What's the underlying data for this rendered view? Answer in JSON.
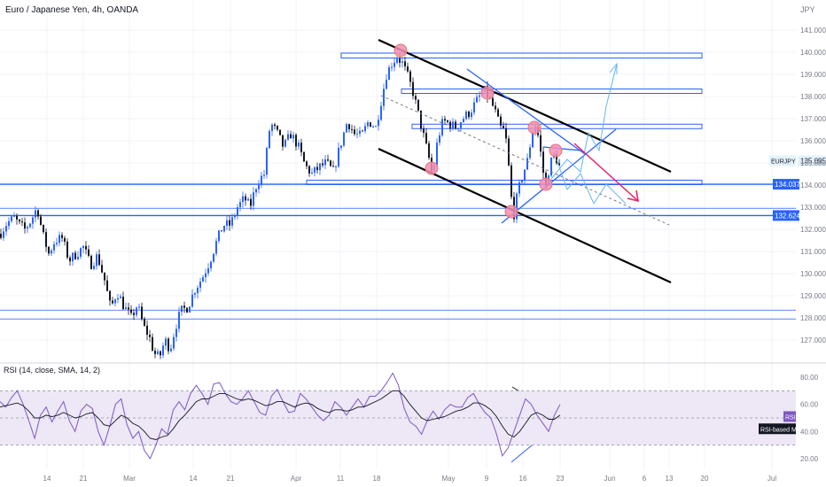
{
  "header": {
    "title": "Euro / Japanese Yen, 4h, OANDA",
    "currency": "JPY"
  },
  "colors": {
    "up": "#2962ff",
    "down": "#131722",
    "hline": "#2962ff",
    "channel": "#000000",
    "circle": "#f48fb1",
    "projection": "#64b5f6",
    "red_arrow": "#e91e63",
    "rsi_line": "#7e57c2",
    "rsi_ma": "#131722",
    "rsi_band": "#ede7f6",
    "grid": "#f0f3fa"
  },
  "chart_data": [
    {
      "type": "candlestick",
      "title": "Euro / Japanese Yen, 4h, OANDA",
      "y_unit": "JPY",
      "ylim": [
        126.2,
        141.5
      ],
      "y_ticks": [
        127,
        128,
        129,
        130,
        131,
        132,
        133,
        134,
        135,
        136,
        137,
        138,
        139,
        140,
        141
      ],
      "y_tick_labels": [
        "127.000",
        "128.000",
        "129.000",
        "130.000",
        "131.000",
        "132.000",
        "133.000",
        "134.000",
        "135.000",
        "136.000",
        "137.000",
        "138.000",
        "139.000",
        "140.000",
        "141.000"
      ],
      "x_labels": [
        "14",
        "21",
        "Mar",
        "14",
        "21",
        "Apr",
        "11",
        "18",
        "May",
        "9",
        "16",
        "23",
        "Jun",
        "6",
        "13",
        "20",
        "Jul"
      ],
      "grid": true,
      "price_path": [
        [
          0,
          131.8
        ],
        [
          8,
          132.3
        ],
        [
          16,
          132.5
        ],
        [
          22,
          132.2
        ],
        [
          28,
          132.0
        ],
        [
          35,
          132.4
        ],
        [
          42,
          133.0
        ],
        [
          48,
          131.8
        ],
        [
          55,
          130.9
        ],
        [
          62,
          131.5
        ],
        [
          70,
          131.6
        ],
        [
          78,
          130.6
        ],
        [
          86,
          130.9
        ],
        [
          94,
          131.2
        ],
        [
          102,
          130.4
        ],
        [
          110,
          130.8
        ],
        [
          118,
          129.7
        ],
        [
          125,
          128.4
        ],
        [
          132,
          129.2
        ],
        [
          140,
          128.5
        ],
        [
          148,
          128.0
        ],
        [
          155,
          128.6
        ],
        [
          162,
          127.6
        ],
        [
          168,
          127.2
        ],
        [
          174,
          126.4
        ],
        [
          180,
          126.2
        ],
        [
          186,
          127.0
        ],
        [
          192,
          126.6
        ],
        [
          198,
          127.6
        ],
        [
          204,
          128.3
        ],
        [
          212,
          128.5
        ],
        [
          220,
          129.3
        ],
        [
          228,
          129.8
        ],
        [
          236,
          130.5
        ],
        [
          244,
          131.4
        ],
        [
          252,
          132.2
        ],
        [
          260,
          132.2
        ],
        [
          268,
          133.0
        ],
        [
          276,
          133.4
        ],
        [
          282,
          133.0
        ],
        [
          290,
          134.1
        ],
        [
          298,
          134.5
        ],
        [
          305,
          136.8
        ],
        [
          312,
          136.4
        ],
        [
          320,
          135.7
        ],
        [
          328,
          136.3
        ],
        [
          336,
          135.8
        ],
        [
          344,
          134.9
        ],
        [
          352,
          134.5
        ],
        [
          360,
          134.8
        ],
        [
          368,
          135.0
        ],
        [
          376,
          134.6
        ],
        [
          384,
          135.8
        ],
        [
          392,
          136.9
        ],
        [
          400,
          136.3
        ],
        [
          408,
          136.2
        ],
        [
          416,
          136.9
        ],
        [
          424,
          136.6
        ],
        [
          430,
          137.8
        ],
        [
          436,
          139.0
        ],
        [
          442,
          139.5
        ],
        [
          448,
          139.8
        ],
        [
          454,
          139.5
        ],
        [
          460,
          138.9
        ],
        [
          466,
          138.2
        ],
        [
          472,
          137.2
        ],
        [
          478,
          136.2
        ],
        [
          484,
          135.2
        ],
        [
          488,
          134.4
        ],
        [
          494,
          136.1
        ],
        [
          500,
          136.9
        ],
        [
          506,
          136.8
        ],
        [
          514,
          136.6
        ],
        [
          522,
          137.0
        ],
        [
          530,
          137.3
        ],
        [
          538,
          137.8
        ],
        [
          546,
          138.3
        ],
        [
          552,
          137.9
        ],
        [
          558,
          137.4
        ],
        [
          564,
          136.6
        ],
        [
          570,
          136.4
        ],
        [
          574,
          134.8
        ],
        [
          577,
          133.4
        ],
        [
          580,
          132.7
        ],
        [
          584,
          133.6
        ],
        [
          590,
          134.5
        ],
        [
          596,
          135.2
        ],
        [
          600,
          136.4
        ],
        [
          604,
          136.7
        ],
        [
          608,
          136.1
        ],
        [
          612,
          134.8
        ],
        [
          616,
          133.9
        ],
        [
          620,
          134.9
        ],
        [
          626,
          135.4
        ],
        [
          632,
          134.7
        ]
      ],
      "hlines": [
        {
          "y": 134.037,
          "label": "134.037"
        },
        {
          "y": 132.624,
          "label": "132.624"
        }
      ],
      "thin_hlines": [
        132.95,
        128.35,
        127.95
      ],
      "zones": [
        {
          "x1": 385,
          "x2": 792,
          "y1": 139.74,
          "y2": 139.96
        },
        {
          "x1": 453,
          "x2": 792,
          "y1": 138.14,
          "y2": 138.34
        },
        {
          "x1": 465,
          "x2": 792,
          "y1": 136.55,
          "y2": 136.75
        },
        {
          "x1": 346,
          "x2": 792,
          "y1": 134.02,
          "y2": 134.22
        }
      ],
      "current_price": {
        "symbol": "EURJPY",
        "value": "135.095",
        "y": 135.095
      }
    },
    {
      "type": "line",
      "title": "RSI (14, close, SMA, 14, 2)",
      "ylim": [
        10,
        90
      ],
      "y_ticks": [
        20,
        40,
        60,
        80
      ],
      "y_tick_labels": [
        "20.00",
        "40.00",
        "60.00",
        "80.00"
      ],
      "band": [
        30,
        70
      ],
      "midline": 50,
      "series": [
        {
          "name": "RSI",
          "values": [
            62,
            58,
            65,
            70,
            60,
            48,
            35,
            52,
            58,
            47,
            55,
            62,
            48,
            40,
            55,
            60,
            57,
            40,
            30,
            44,
            60,
            64,
            45,
            35,
            40,
            26,
            20,
            30,
            42,
            38,
            56,
            62,
            56,
            68,
            74,
            68,
            60,
            75,
            76,
            68,
            62,
            60,
            64,
            70,
            62,
            54,
            52,
            66,
            71,
            62,
            54,
            55,
            68,
            64,
            58,
            52,
            48,
            52,
            62,
            58,
            52,
            58,
            64,
            58,
            66,
            66,
            70,
            76,
            83,
            74,
            57,
            47,
            44,
            38,
            48,
            55,
            49,
            56,
            60,
            58,
            58,
            65,
            68,
            60,
            54,
            50,
            38,
            22,
            28,
            40,
            52,
            64,
            60,
            52,
            46,
            40,
            52,
            60
          ]
        },
        {
          "name": "RSI-based MA",
          "values": [
            58,
            59,
            60,
            61,
            59,
            55,
            50,
            50,
            52,
            51,
            52,
            54,
            52,
            50,
            51,
            53,
            54,
            50,
            45,
            44,
            48,
            52,
            50,
            46,
            44,
            40,
            35,
            34,
            36,
            37,
            42,
            48,
            52,
            57,
            62,
            64,
            64,
            66,
            68,
            68,
            66,
            64,
            63,
            64,
            63,
            61,
            59,
            60,
            62,
            62,
            60,
            58,
            60,
            61,
            60,
            57,
            55,
            54,
            56,
            56,
            55,
            56,
            58,
            58,
            60,
            62,
            64,
            67,
            70,
            70,
            66,
            60,
            55,
            50,
            48,
            49,
            50,
            51,
            53,
            55,
            56,
            58,
            61,
            61,
            59,
            56,
            51,
            44,
            38,
            36,
            40,
            46,
            52,
            54,
            52,
            49,
            49,
            52
          ]
        }
      ],
      "series_labels": [
        "RSI",
        "RSI-based MA"
      ]
    }
  ]
}
